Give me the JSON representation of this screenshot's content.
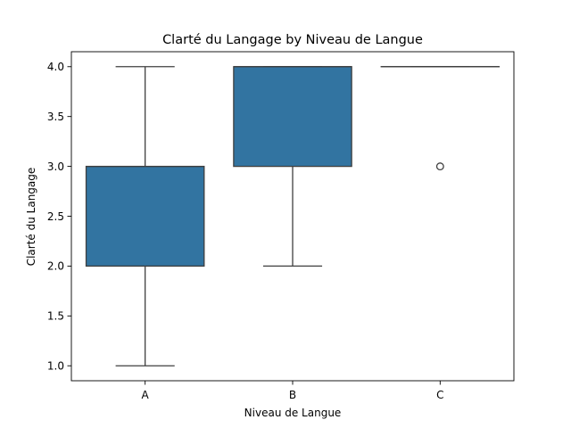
{
  "chart_data": {
    "type": "box",
    "title": "Clarté du Langage by Niveau de Langue",
    "xlabel": "Niveau de Langue",
    "ylabel": "Clarté du Langage",
    "categories": [
      "A",
      "B",
      "C"
    ],
    "ylim": [
      0.85,
      4.15
    ],
    "yticks": [
      1.0,
      1.5,
      2.0,
      2.5,
      3.0,
      3.5,
      4.0
    ],
    "ytick_labels": [
      "1.0",
      "1.5",
      "2.0",
      "2.5",
      "3.0",
      "3.5",
      "4.0"
    ],
    "boxes": [
      {
        "category": "A",
        "whisker_low": 1.0,
        "q1": 2.0,
        "median": 3.0,
        "q3": 3.0,
        "whisker_high": 4.0,
        "outliers": []
      },
      {
        "category": "B",
        "whisker_low": 2.0,
        "q1": 3.0,
        "median": 4.0,
        "q3": 4.0,
        "whisker_high": 4.0,
        "outliers": []
      },
      {
        "category": "C",
        "whisker_low": 4.0,
        "q1": 4.0,
        "median": 4.0,
        "q3": 4.0,
        "whisker_high": 4.0,
        "outliers": [
          3.0
        ]
      }
    ],
    "box_color": "#3274a1",
    "line_color": "#3f3f3f",
    "grid": false
  }
}
